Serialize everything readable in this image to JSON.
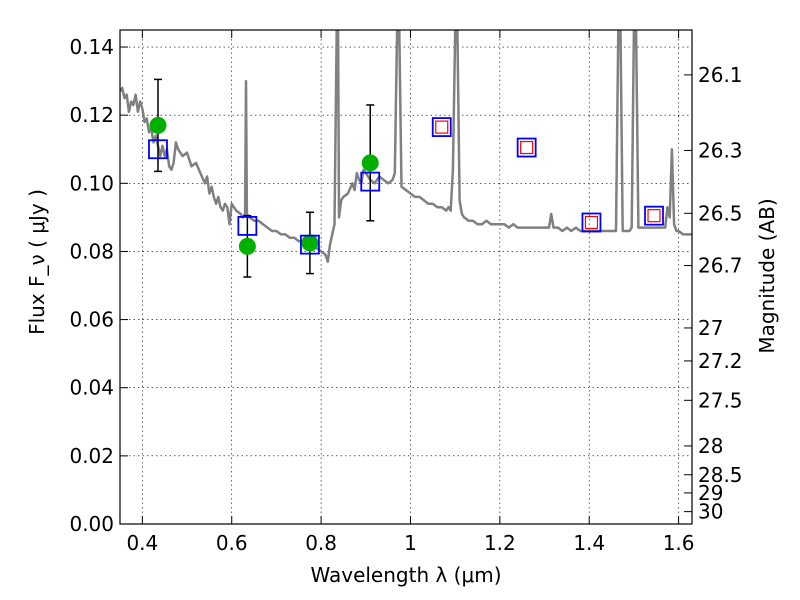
{
  "chart_data": {
    "type": "scatter",
    "xlabel": "Wavelength  λ (μm)",
    "ylabel": "Flux  F_ν  ( μJy )",
    "y2label": "Magnitude (AB)",
    "xlim": [
      0.35,
      1.63
    ],
    "ylim": [
      0.0,
      0.145
    ],
    "x_ticks": [
      0.4,
      0.6,
      0.8,
      1.0,
      1.2,
      1.4,
      1.6
    ],
    "x_tick_labels": [
      "0.4",
      "0.6",
      "0.8",
      "1",
      "1.2",
      "1.4",
      "1.6"
    ],
    "y_ticks": [
      0.0,
      0.02,
      0.04,
      0.06,
      0.08,
      0.1,
      0.12,
      0.14
    ],
    "y_tick_labels": [
      "0.00",
      "0.02",
      "0.04",
      "0.06",
      "0.08",
      "0.10",
      "0.12",
      "0.14"
    ],
    "mag_ticks": [
      26.1,
      26.3,
      26.5,
      26.7,
      27,
      27.2,
      27.5,
      28,
      28.5,
      29,
      30
    ],
    "mag_tick_labels": [
      "26.1",
      "26.3",
      "26.5",
      "26.7",
      "27",
      "27.2",
      "27.5",
      "28",
      "28.5",
      "29",
      "30"
    ],
    "grid": true,
    "colors": {
      "model_spectrum": "#808080",
      "observed": "#00b000",
      "model_photometry": "#0000ff",
      "model_photometry_inner": "#ff0000",
      "errorbar": "#000000"
    },
    "series": [
      {
        "kind": "line",
        "points": [
          [
            0.35,
            0.127
          ],
          [
            0.355,
            0.128
          ],
          [
            0.36,
            0.125
          ],
          [
            0.365,
            0.126
          ],
          [
            0.37,
            0.121
          ],
          [
            0.375,
            0.124
          ],
          [
            0.38,
            0.123
          ],
          [
            0.385,
            0.126
          ],
          [
            0.39,
            0.121
          ],
          [
            0.395,
            0.124
          ],
          [
            0.4,
            0.122
          ],
          [
            0.405,
            0.118
          ],
          [
            0.41,
            0.119
          ],
          [
            0.415,
            0.115
          ],
          [
            0.42,
            0.116
          ],
          [
            0.425,
            0.112
          ],
          [
            0.43,
            0.114
          ],
          [
            0.435,
            0.111
          ],
          [
            0.44,
            0.108
          ],
          [
            0.445,
            0.111
          ],
          [
            0.45,
            0.108
          ],
          [
            0.455,
            0.11
          ],
          [
            0.46,
            0.105
          ],
          [
            0.465,
            0.104
          ],
          [
            0.47,
            0.106
          ],
          [
            0.475,
            0.112
          ],
          [
            0.48,
            0.11
          ],
          [
            0.49,
            0.108
          ],
          [
            0.5,
            0.109
          ],
          [
            0.51,
            0.105
          ],
          [
            0.52,
            0.106
          ],
          [
            0.53,
            0.103
          ],
          [
            0.54,
            0.1
          ],
          [
            0.545,
            0.102
          ],
          [
            0.55,
            0.097
          ],
          [
            0.555,
            0.099
          ],
          [
            0.56,
            0.096
          ],
          [
            0.565,
            0.094
          ],
          [
            0.57,
            0.096
          ],
          [
            0.575,
            0.093
          ],
          [
            0.58,
            0.092
          ],
          [
            0.585,
            0.094
          ],
          [
            0.59,
            0.093
          ],
          [
            0.595,
            0.088
          ],
          [
            0.6,
            0.094
          ],
          [
            0.61,
            0.092
          ],
          [
            0.62,
            0.091
          ],
          [
            0.625,
            0.09
          ],
          [
            0.63,
            0.091
          ],
          [
            0.632,
            0.13
          ],
          [
            0.634,
            0.091
          ],
          [
            0.64,
            0.09
          ],
          [
            0.65,
            0.089
          ],
          [
            0.66,
            0.089
          ],
          [
            0.67,
            0.088
          ],
          [
            0.68,
            0.087
          ],
          [
            0.69,
            0.086
          ],
          [
            0.7,
            0.086
          ],
          [
            0.71,
            0.085
          ],
          [
            0.72,
            0.085
          ],
          [
            0.73,
            0.084
          ],
          [
            0.74,
            0.084
          ],
          [
            0.75,
            0.083
          ],
          [
            0.76,
            0.083
          ],
          [
            0.77,
            0.082
          ],
          [
            0.78,
            0.082
          ],
          [
            0.79,
            0.081
          ],
          [
            0.8,
            0.08
          ],
          [
            0.81,
            0.079
          ],
          [
            0.815,
            0.077
          ],
          [
            0.82,
            0.082
          ],
          [
            0.83,
            0.088
          ],
          [
            0.835,
            0.145
          ],
          [
            0.838,
            0.145
          ],
          [
            0.84,
            0.09
          ],
          [
            0.845,
            0.095
          ],
          [
            0.85,
            0.096
          ],
          [
            0.86,
            0.097
          ],
          [
            0.87,
            0.1
          ],
          [
            0.875,
            0.098
          ],
          [
            0.88,
            0.103
          ],
          [
            0.885,
            0.101
          ],
          [
            0.89,
            0.1
          ],
          [
            0.895,
            0.104
          ],
          [
            0.9,
            0.103
          ],
          [
            0.91,
            0.101
          ],
          [
            0.92,
            0.1
          ],
          [
            0.93,
            0.102
          ],
          [
            0.94,
            0.101
          ],
          [
            0.95,
            0.1
          ],
          [
            0.96,
            0.101
          ],
          [
            0.965,
            0.103
          ],
          [
            0.97,
            0.145
          ],
          [
            0.975,
            0.145
          ],
          [
            0.98,
            0.099
          ],
          [
            0.99,
            0.098
          ],
          [
            1.0,
            0.097
          ],
          [
            1.01,
            0.096
          ],
          [
            1.02,
            0.096
          ],
          [
            1.03,
            0.095
          ],
          [
            1.04,
            0.094
          ],
          [
            1.05,
            0.094
          ],
          [
            1.06,
            0.093
          ],
          [
            1.07,
            0.093
          ],
          [
            1.08,
            0.092
          ],
          [
            1.085,
            0.093
          ],
          [
            1.09,
            0.092
          ],
          [
            1.095,
            0.104
          ],
          [
            1.1,
            0.145
          ],
          [
            1.105,
            0.145
          ],
          [
            1.11,
            0.095
          ],
          [
            1.115,
            0.091
          ],
          [
            1.12,
            0.09
          ],
          [
            1.13,
            0.089
          ],
          [
            1.14,
            0.089
          ],
          [
            1.15,
            0.088
          ],
          [
            1.16,
            0.088
          ],
          [
            1.17,
            0.089
          ],
          [
            1.18,
            0.088
          ],
          [
            1.19,
            0.088
          ],
          [
            1.2,
            0.088
          ],
          [
            1.21,
            0.088
          ],
          [
            1.22,
            0.087
          ],
          [
            1.23,
            0.088
          ],
          [
            1.24,
            0.087
          ],
          [
            1.25,
            0.087
          ],
          [
            1.26,
            0.087
          ],
          [
            1.27,
            0.087
          ],
          [
            1.28,
            0.087
          ],
          [
            1.29,
            0.087
          ],
          [
            1.3,
            0.087
          ],
          [
            1.31,
            0.087
          ],
          [
            1.315,
            0.091
          ],
          [
            1.32,
            0.087
          ],
          [
            1.33,
            0.087
          ],
          [
            1.34,
            0.086
          ],
          [
            1.35,
            0.087
          ],
          [
            1.36,
            0.086
          ],
          [
            1.37,
            0.087
          ],
          [
            1.38,
            0.086
          ],
          [
            1.39,
            0.086
          ],
          [
            1.4,
            0.086
          ],
          [
            1.41,
            0.086
          ],
          [
            1.42,
            0.086
          ],
          [
            1.43,
            0.086
          ],
          [
            1.44,
            0.086
          ],
          [
            1.45,
            0.086
          ],
          [
            1.46,
            0.086
          ],
          [
            1.465,
            0.145
          ],
          [
            1.47,
            0.145
          ],
          [
            1.475,
            0.086
          ],
          [
            1.48,
            0.086
          ],
          [
            1.49,
            0.086
          ],
          [
            1.495,
            0.087
          ],
          [
            1.5,
            0.145
          ],
          [
            1.505,
            0.145
          ],
          [
            1.51,
            0.087
          ],
          [
            1.52,
            0.087
          ],
          [
            1.53,
            0.087
          ],
          [
            1.54,
            0.087
          ],
          [
            1.55,
            0.087
          ],
          [
            1.56,
            0.087
          ],
          [
            1.57,
            0.087
          ],
          [
            1.575,
            0.093
          ],
          [
            1.58,
            0.09
          ],
          [
            1.585,
            0.11
          ],
          [
            1.59,
            0.088
          ],
          [
            1.595,
            0.086
          ],
          [
            1.6,
            0.086
          ],
          [
            1.61,
            0.085
          ],
          [
            1.62,
            0.085
          ],
          [
            1.63,
            0.085
          ]
        ]
      },
      {
        "kind": "points_with_errorbars",
        "points": [
          {
            "x": 0.435,
            "y": 0.117,
            "err": 0.0135
          },
          {
            "x": 0.635,
            "y": 0.0815,
            "err": 0.009
          },
          {
            "x": 0.775,
            "y": 0.0825,
            "err": 0.009
          },
          {
            "x": 0.91,
            "y": 0.106,
            "err": 0.017
          }
        ]
      },
      {
        "kind": "open_squares",
        "points": [
          {
            "x": 0.435,
            "y": 0.11
          },
          {
            "x": 0.635,
            "y": 0.0875
          },
          {
            "x": 0.775,
            "y": 0.082
          },
          {
            "x": 0.91,
            "y": 0.1005
          },
          {
            "x": 1.07,
            "y": 0.1165
          },
          {
            "x": 1.26,
            "y": 0.1105
          },
          {
            "x": 1.405,
            "y": 0.0885
          },
          {
            "x": 1.545,
            "y": 0.0905
          }
        ]
      },
      {
        "kind": "open_squares_inner",
        "points": [
          {
            "x": 1.07,
            "y": 0.1165
          },
          {
            "x": 1.26,
            "y": 0.1105
          },
          {
            "x": 1.405,
            "y": 0.0885
          },
          {
            "x": 1.545,
            "y": 0.0905
          }
        ]
      }
    ]
  }
}
